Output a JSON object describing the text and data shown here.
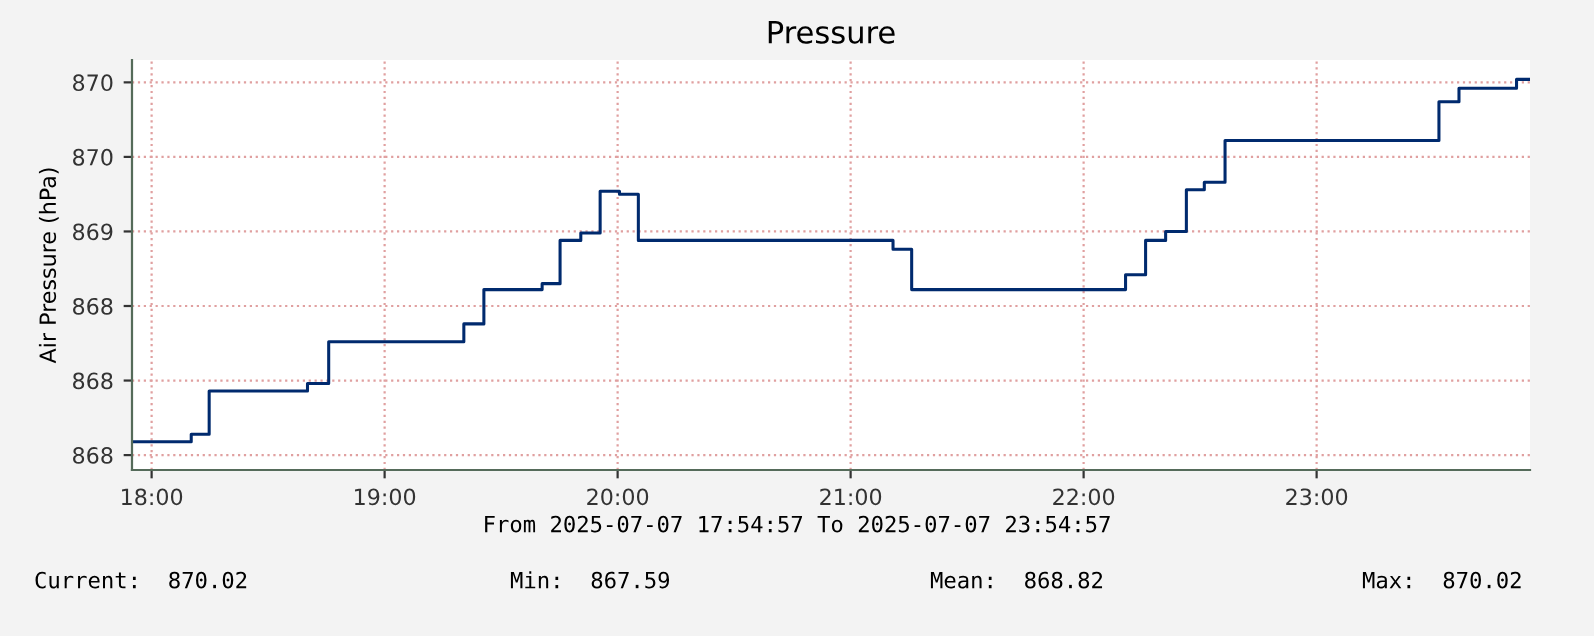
{
  "chart_data": {
    "type": "step",
    "title": "Pressure",
    "ylabel": "Air Pressure (hPa)",
    "x": [
      17.916,
      18.17,
      18.247,
      18.669,
      18.76,
      19.34,
      19.426,
      19.676,
      19.753,
      19.842,
      19.925,
      20.008,
      20.089,
      21.182,
      21.262,
      22.18,
      22.266,
      22.352,
      22.441,
      22.518,
      22.607,
      23.525,
      23.611,
      23.858,
      23.915
    ],
    "series": [
      {
        "color": "#002a6e",
        "values": [
          867.59,
          867.64,
          867.93,
          867.98,
          868.26,
          868.38,
          868.61,
          868.65,
          868.94,
          868.99,
          869.27,
          869.25,
          868.94,
          868.88,
          868.61,
          868.71,
          868.94,
          869.0,
          869.28,
          869.33,
          869.61,
          869.87,
          869.96,
          870.02,
          870.02
        ]
      }
    ],
    "xlim": [
      17.9158,
      23.9158
    ],
    "xticks": [
      {
        "value": 18,
        "label": "18:00"
      },
      {
        "value": 19,
        "label": "19:00"
      },
      {
        "value": 20,
        "label": "20:00"
      },
      {
        "value": 21,
        "label": "21:00"
      },
      {
        "value": 22,
        "label": "22:00"
      },
      {
        "value": 23,
        "label": "23:00"
      }
    ],
    "ylim": [
      867.4,
      870.15
    ],
    "yticks": [
      {
        "value": 867.5,
        "label": "868"
      },
      {
        "value": 868.0,
        "label": "868"
      },
      {
        "value": 868.5,
        "label": "868"
      },
      {
        "value": 869.0,
        "label": "869"
      },
      {
        "value": 869.5,
        "label": "870"
      },
      {
        "value": 870.0,
        "label": "870"
      }
    ],
    "grid": true,
    "legend": false,
    "annotations": [
      "From 2025-07-07 17:54:57 To 2025-07-07 23:54:57",
      "Current:  870.02",
      "Min:  867.59",
      "Mean:  868.82",
      "Max:  870.02"
    ]
  }
}
